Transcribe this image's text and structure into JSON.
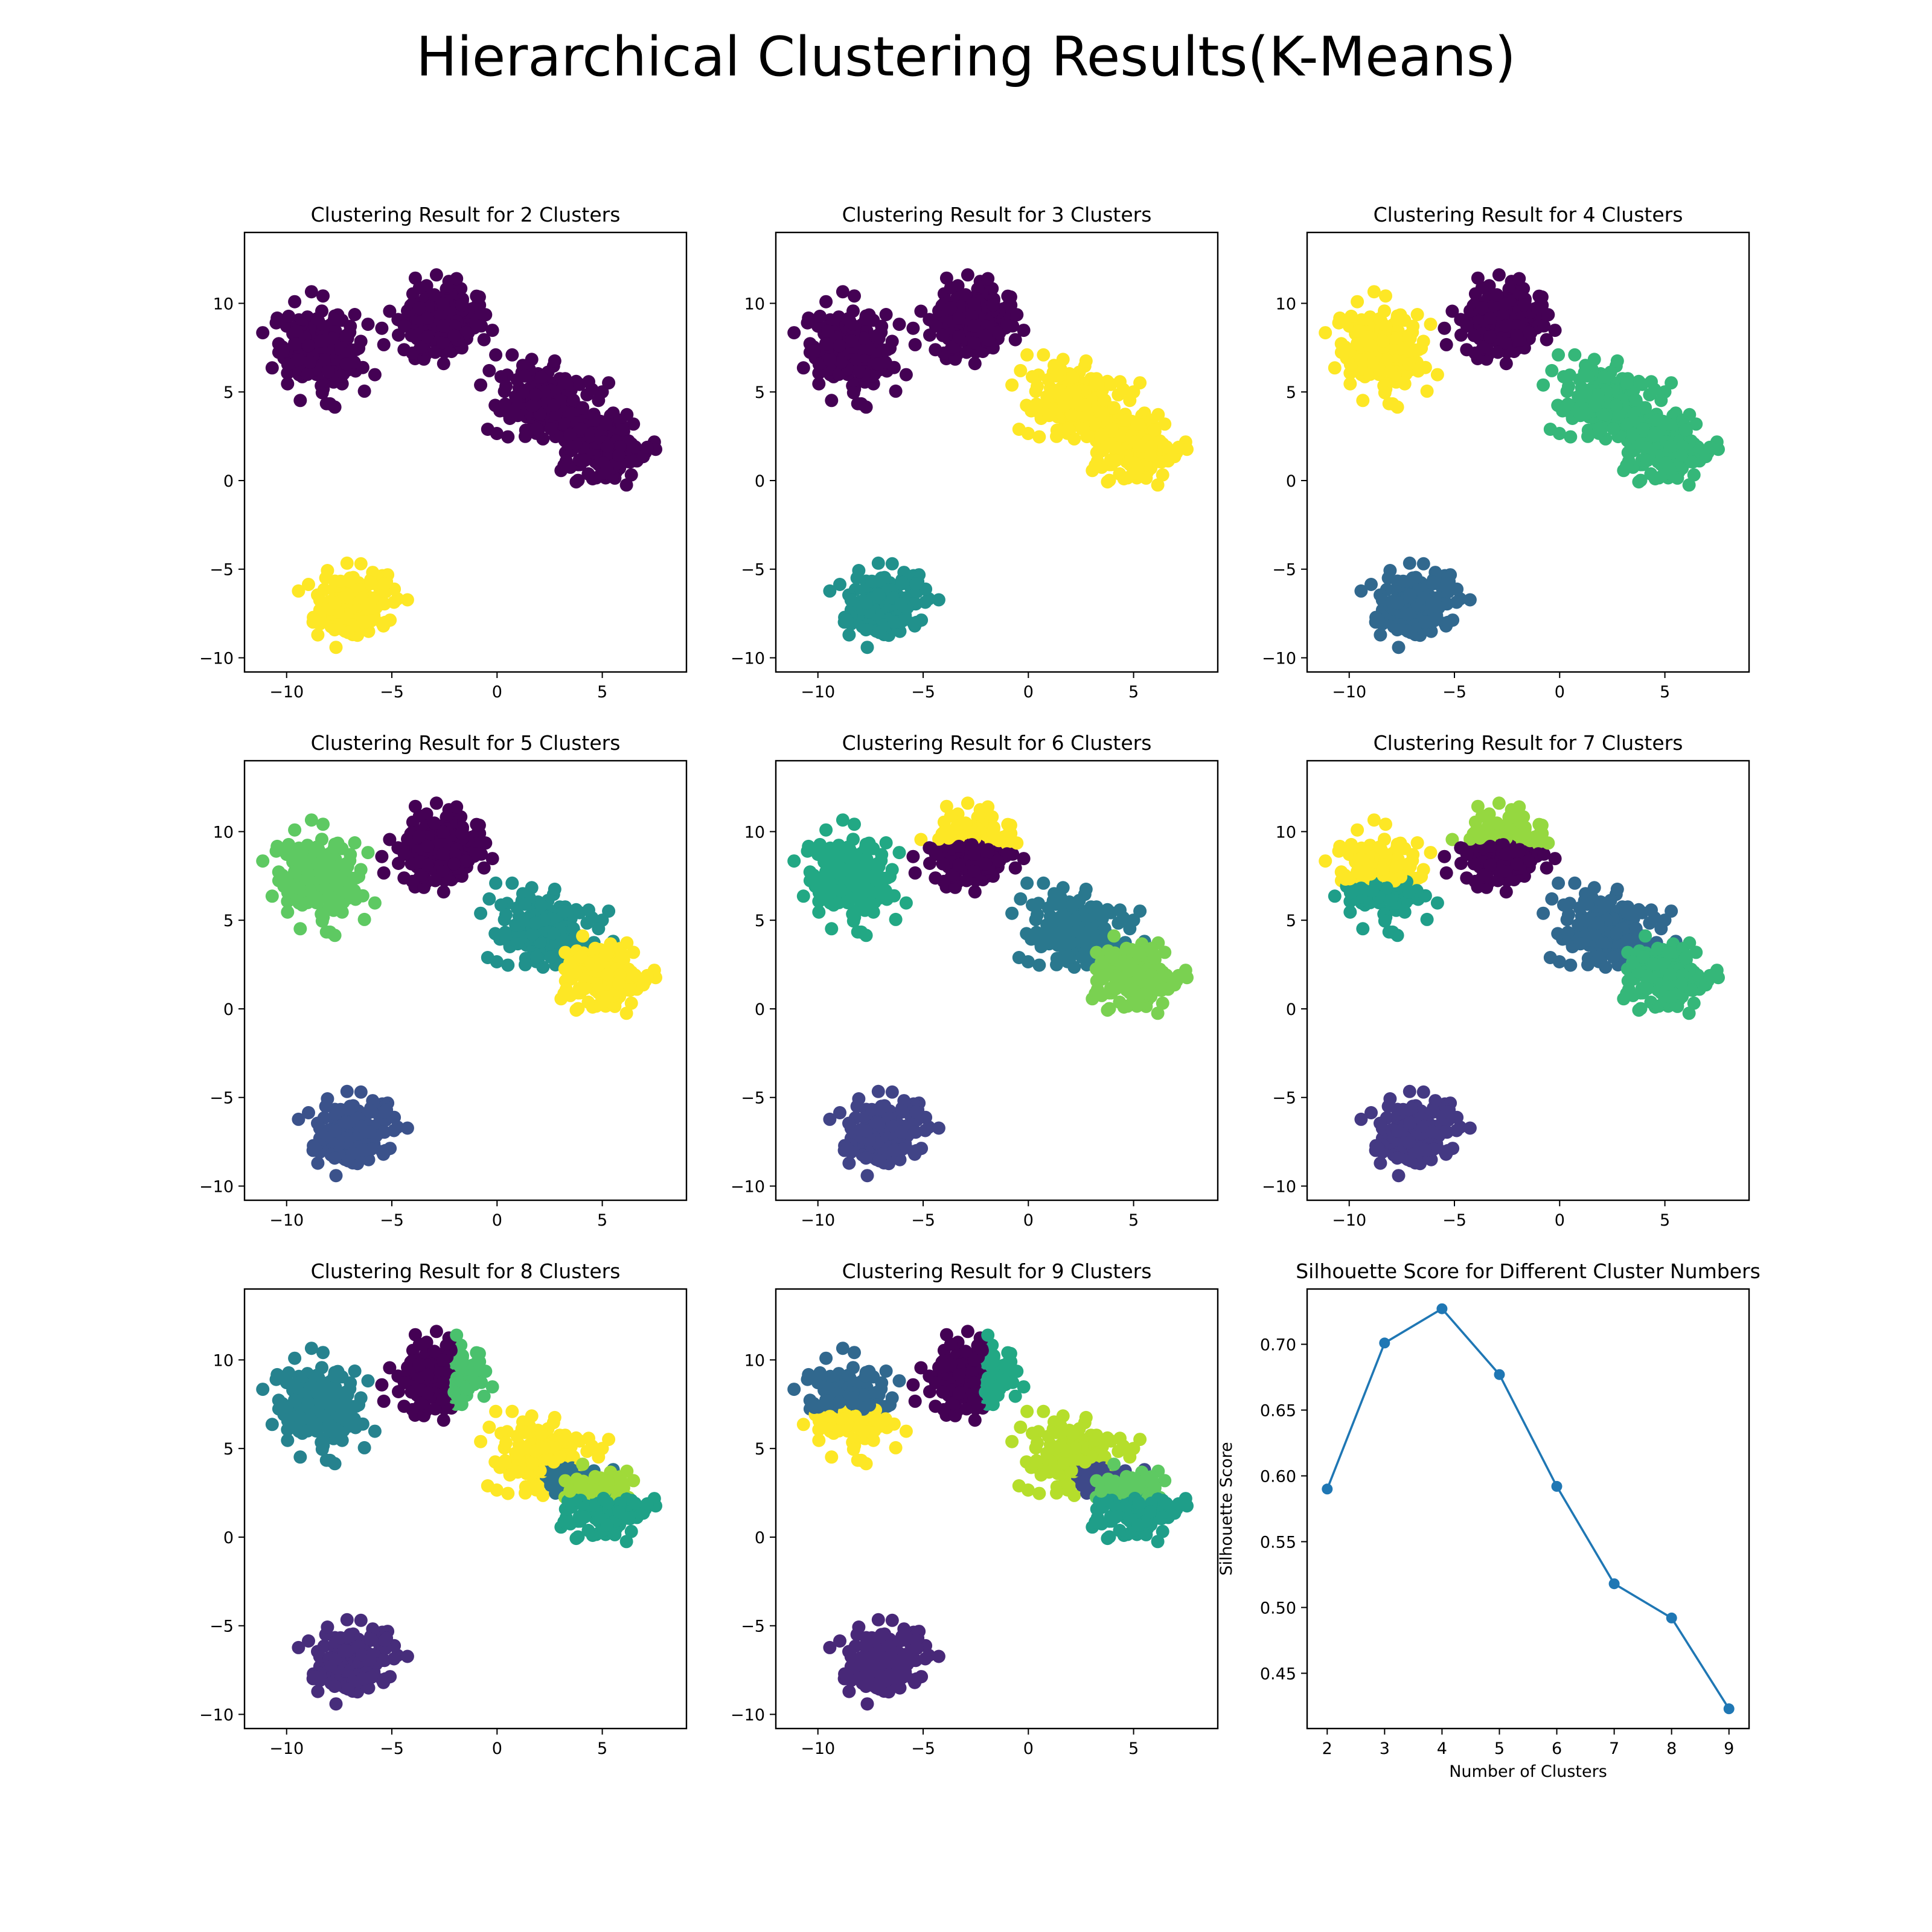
{
  "figure": {
    "title": "Hierarchical Clustering Results(K-Means)"
  },
  "palette": {
    "viridis": [
      "#440154",
      "#482878",
      "#3e4989",
      "#31688e",
      "#26828e",
      "#1f9e89",
      "#35b779",
      "#6ece58",
      "#b5de2b",
      "#fde725"
    ],
    "line": "#1f77b4"
  },
  "blobs": [
    {
      "id": "A",
      "center": [
        -8.6,
        7.4
      ],
      "spread": [
        0.95,
        1.05
      ]
    },
    {
      "id": "B",
      "center": [
        -2.6,
        9.0
      ],
      "spread": [
        0.95,
        0.95
      ]
    },
    {
      "id": "C",
      "center": [
        2.4,
        4.3
      ],
      "spread": [
        1.05,
        0.9
      ]
    },
    {
      "id": "D",
      "center": [
        5.0,
        2.0
      ],
      "spread": [
        1.0,
        0.9
      ]
    },
    {
      "id": "E",
      "center": [
        -6.8,
        -7.0
      ],
      "spread": [
        0.85,
        0.9
      ]
    }
  ],
  "chart_data": [
    {
      "type": "scatter",
      "title": "Clustering Result for 2 Clusters",
      "k": 2,
      "xlim": [
        -12.0,
        9.0
      ],
      "ylim": [
        -10.8,
        14.0
      ],
      "xticks": [
        -10,
        -5,
        0,
        5
      ],
      "yticks": [
        -10,
        -5,
        0,
        5,
        10
      ],
      "cluster_colors": {
        "A": "#440154",
        "B": "#440154",
        "C": "#440154",
        "D": "#440154",
        "E": "#fde725"
      }
    },
    {
      "type": "scatter",
      "title": "Clustering Result for 3 Clusters",
      "k": 3,
      "xlim": [
        -12.0,
        9.0
      ],
      "ylim": [
        -10.8,
        14.0
      ],
      "xticks": [
        -10,
        -5,
        0,
        5
      ],
      "yticks": [
        -10,
        -5,
        0,
        5,
        10
      ],
      "cluster_colors": {
        "A": "#440154",
        "B": "#440154",
        "C": "#fde725",
        "D": "#fde725",
        "E": "#21918c"
      }
    },
    {
      "type": "scatter",
      "title": "Clustering Result for 4 Clusters",
      "k": 4,
      "xlim": [
        -12.0,
        9.0
      ],
      "ylim": [
        -10.8,
        14.0
      ],
      "xticks": [
        -10,
        -5,
        0,
        5
      ],
      "yticks": [
        -10,
        -5,
        0,
        5,
        10
      ],
      "cluster_colors": {
        "A": "#fde725",
        "B": "#440154",
        "C": "#35b779",
        "D": "#35b779",
        "E": "#31688e"
      }
    },
    {
      "type": "scatter",
      "title": "Clustering Result for 5 Clusters",
      "k": 5,
      "xlim": [
        -12.0,
        9.0
      ],
      "ylim": [
        -10.8,
        14.0
      ],
      "xticks": [
        -10,
        -5,
        0,
        5
      ],
      "yticks": [
        -10,
        -5,
        0,
        5,
        10
      ],
      "cluster_colors": {
        "A": "#5ec962",
        "B": "#440154",
        "C": "#21918c",
        "D": "#fde725",
        "E": "#3b528b"
      }
    },
    {
      "type": "scatter",
      "title": "Clustering Result for 6 Clusters",
      "k": 6,
      "xlim": [
        -12.0,
        9.0
      ],
      "ylim": [
        -10.8,
        14.0
      ],
      "xticks": [
        -10,
        -5,
        0,
        5
      ],
      "yticks": [
        -10,
        -5,
        0,
        5,
        10
      ],
      "cluster_colors": {
        "A": "#22a884",
        "B": "#440154",
        "B_upper": "#fde725",
        "C": "#2a788e",
        "D": "#7ad151",
        "E": "#414487"
      }
    },
    {
      "type": "scatter",
      "title": "Clustering Result for 7 Clusters",
      "k": 7,
      "xlim": [
        -12.0,
        9.0
      ],
      "ylim": [
        -10.8,
        14.0
      ],
      "xticks": [
        -10,
        -5,
        0,
        5
      ],
      "yticks": [
        -10,
        -5,
        0,
        5,
        10
      ],
      "cluster_colors": {
        "A": "#fde725",
        "A_lower": "#1f9e89",
        "B": "#440154",
        "B_upper": "#95d840",
        "C": "#31688e",
        "D": "#35b779",
        "E": "#443983"
      }
    },
    {
      "type": "scatter",
      "title": "Clustering Result for 8 Clusters",
      "k": 8,
      "xlim": [
        -12.0,
        9.0
      ],
      "ylim": [
        -10.8,
        14.0
      ],
      "xticks": [
        -10,
        -5,
        0,
        5
      ],
      "yticks": [
        -10,
        -5,
        0,
        5,
        10
      ],
      "cluster_colors": {
        "A": "#26828e",
        "B": "#440154",
        "B_right": "#4ac16d",
        "C": "#fde725",
        "C_lower": "#2c728e",
        "D": "#1fa187",
        "D_upper": "#a0da39",
        "E": "#472d7b"
      }
    },
    {
      "type": "scatter",
      "title": "Clustering Result for 9 Clusters",
      "k": 9,
      "xlim": [
        -12.0,
        9.0
      ],
      "ylim": [
        -10.8,
        14.0
      ],
      "xticks": [
        -10,
        -5,
        0,
        5
      ],
      "yticks": [
        -10,
        -5,
        0,
        5,
        10
      ],
      "cluster_colors": {
        "A": "#31688e",
        "A_lower": "#fde725",
        "B": "#440154",
        "B_right": "#22a884",
        "C": "#b5de2b",
        "C_lower": "#3e4989",
        "D": "#1f9e89",
        "D_upper": "#5ec962",
        "E": "#482878"
      }
    },
    {
      "type": "line",
      "title": "Silhouette Score for Different Cluster Numbers",
      "xlabel": "Number of Clusters",
      "ylabel": "Silhouette Score",
      "x": [
        2,
        3,
        4,
        5,
        6,
        7,
        8,
        9
      ],
      "y": [
        0.59,
        0.701,
        0.727,
        0.677,
        0.592,
        0.518,
        0.492,
        0.423
      ],
      "xlim": [
        1.65,
        9.35
      ],
      "ylim": [
        0.408,
        0.742
      ],
      "xticks": [
        2,
        3,
        4,
        5,
        6,
        7,
        8,
        9
      ],
      "yticks": [
        "0.45",
        "0.50",
        "0.55",
        "0.60",
        "0.65",
        "0.70"
      ],
      "marker": "circle",
      "grid": false
    }
  ]
}
